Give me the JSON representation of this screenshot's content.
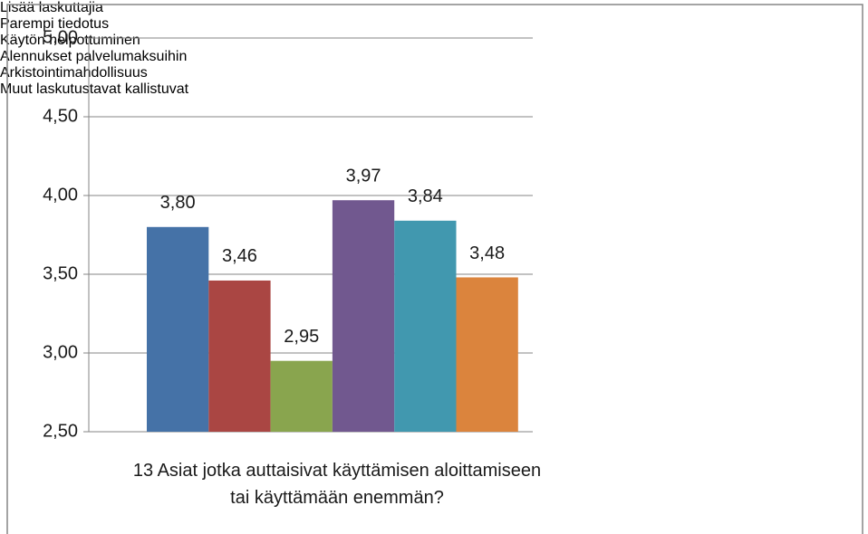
{
  "chart_data": {
    "type": "bar",
    "categories": [
      "13 Asiat jotka auttaisivat käyttämisen aloittamiseen tai käyttämään enemmän?"
    ],
    "series": [
      {
        "name": "Lisää laskuttajia",
        "color": "#4572a7",
        "values": [
          3.8
        ],
        "value_labels": [
          "3,80"
        ]
      },
      {
        "name": "Parempi tiedotus",
        "color": "#aa4643",
        "values": [
          3.46
        ],
        "value_labels": [
          "3,46"
        ]
      },
      {
        "name": "Käytön helpottuminen",
        "color": "#89a54e",
        "values": [
          2.95
        ],
        "value_labels": [
          "2,95"
        ]
      },
      {
        "name": "Alennukset palvelumaksuihin",
        "color": "#71588f",
        "values": [
          3.97
        ],
        "value_labels": [
          "3,97"
        ]
      },
      {
        "name": "Arkistointimahdollisuus",
        "color": "#4198af",
        "values": [
          3.84
        ],
        "value_labels": [
          "3,84"
        ]
      },
      {
        "name": "Muut laskutustavat kallistuvat",
        "color": "#db843d",
        "values": [
          3.48
        ],
        "value_labels": [
          "3,48"
        ]
      }
    ],
    "ylim": [
      2.5,
      5.0
    ],
    "yticks": [
      {
        "value": 2.5,
        "label": "2,50"
      },
      {
        "value": 3.0,
        "label": "3,00"
      },
      {
        "value": 3.5,
        "label": "3,50"
      },
      {
        "value": 4.0,
        "label": "4,00"
      },
      {
        "value": 4.5,
        "label": "4,50"
      },
      {
        "value": 5.0,
        "label": "5,00"
      }
    ],
    "grid": true,
    "legend": "right"
  }
}
